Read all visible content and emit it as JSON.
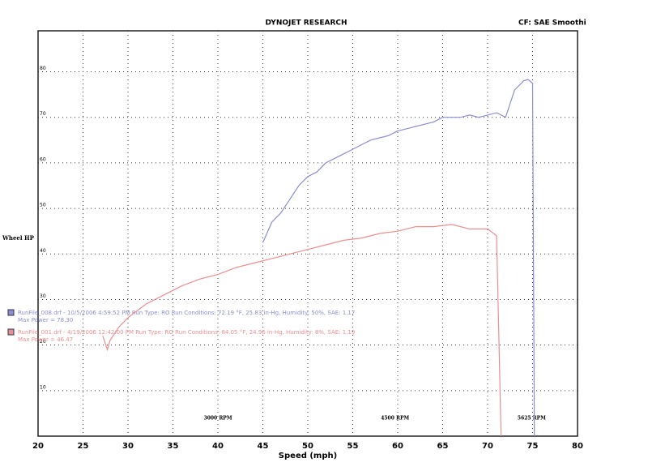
{
  "chart_data": {
    "type": "line",
    "title": "DYNOJET RESEARCH",
    "subtitle": "CF: SAE  Smoothi",
    "y_label": "Wheel HP",
    "x_label": "Speed (mph)",
    "xlim": [
      20,
      80
    ],
    "xticks": [
      20,
      25,
      30,
      35,
      40,
      45,
      50,
      55,
      60,
      65,
      70,
      75,
      80
    ],
    "ylim": [
      0,
      89
    ],
    "yticks": [
      10,
      20,
      30,
      40,
      50,
      60,
      70,
      80
    ],
    "grid": true,
    "series": [
      {
        "name": "RunFile_008.drf - 10/5/2006 4:59:52 PM  Run Type: RO  Run Conditions: 72.19 °F, 25.83 in-Hg,  Humidity: 50%, SAE: 1.17",
        "note": "Max Power = 78.30",
        "color": "#8a8fd0",
        "x": [
          45,
          46,
          47,
          48,
          49,
          50,
          51,
          52,
          53,
          54,
          55,
          56,
          57,
          58,
          59,
          60,
          61,
          62,
          63,
          64,
          65,
          66,
          67,
          68,
          69,
          70,
          71,
          72,
          73,
          74,
          74.5,
          75,
          75.2
        ],
        "values": [
          42.5,
          47,
          49,
          52,
          55,
          57,
          58,
          60,
          61,
          62,
          63,
          64,
          65,
          65.5,
          66,
          67,
          67.5,
          68,
          68.5,
          69,
          70,
          70,
          70,
          70.5,
          70,
          70.5,
          71,
          70,
          76,
          78,
          78.3,
          77.5,
          0
        ]
      },
      {
        "name": "RunFile_001.drf - 4/19/2006 12:42:00 PM  Run Type: RO  Run Conditions: 84.05 °F, 24.96 in-Hg,  Humidity: 8%, SAE: 1.19",
        "note": "Max Power = 46.47",
        "color": "#e89090",
        "x": [
          27.2,
          27.7,
          28,
          29,
          30,
          32,
          34,
          36,
          38,
          40,
          42,
          44,
          46,
          48,
          50,
          52,
          54,
          56,
          58,
          60,
          62,
          64,
          66,
          68,
          70,
          71,
          71.5
        ],
        "values": [
          22,
          19,
          21,
          24,
          26,
          29,
          31,
          33,
          34.5,
          35.5,
          37,
          38,
          39,
          40,
          41,
          42,
          43,
          43.5,
          44.5,
          45,
          46,
          46,
          46.47,
          45.5,
          45.5,
          44,
          0
        ]
      }
    ],
    "annotations": [
      {
        "text": "3000 RPM",
        "x": 40
      },
      {
        "text": "4500 RPM",
        "x": 59.7
      },
      {
        "text": "5625 RPM",
        "x": 74.9
      }
    ]
  }
}
